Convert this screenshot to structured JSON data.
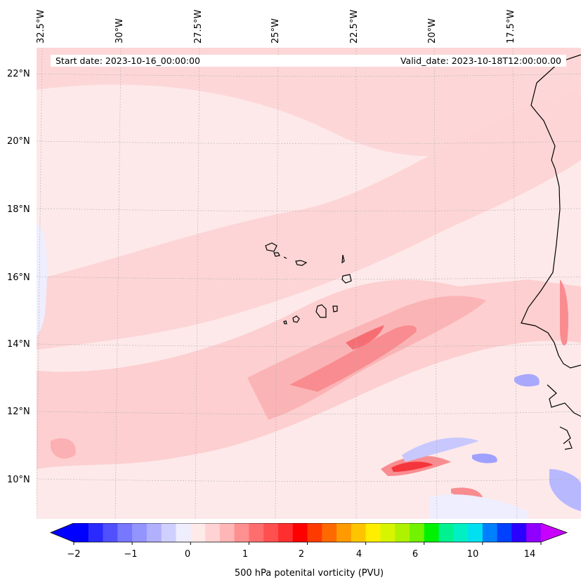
{
  "map": {
    "start_date": "Start date: 2023-10-16_00:00:00",
    "valid_date": "Valid_date: 2023-10-18T12:00:00.00",
    "lon_labels": [
      "32.5°W",
      "30°W",
      "27.5°W",
      "25°W",
      "22.5°W",
      "20°W",
      "17.5°W"
    ],
    "lat_labels": [
      "22°N",
      "20°N",
      "18°N",
      "16°N",
      "14°N",
      "12°N",
      "10°N"
    ],
    "coastline_color": "#000000",
    "gridline_color": "#b0b0b0"
  },
  "colorbar": {
    "title": "500 hPa potenital vorticity (PVU)",
    "tick_labels": [
      "−2",
      "−1",
      "0",
      "1",
      "2",
      "4",
      "6",
      "10",
      "14"
    ],
    "colors": [
      "#0000ff",
      "#2a2aff",
      "#5050ff",
      "#7777ff",
      "#9494ff",
      "#b0b0ff",
      "#d0d0ff",
      "#eeeeff",
      "#ffeaea",
      "#ffd3d3",
      "#ffb6b6",
      "#ff9090",
      "#ff6e6e",
      "#ff5050",
      "#ff2f2f",
      "#ff0000",
      "#ff3a00",
      "#ff6a00",
      "#ff9a00",
      "#ffc400",
      "#ffee00",
      "#d8f500",
      "#aef200",
      "#70f200",
      "#00f200",
      "#00f290",
      "#00f0c4",
      "#00e0f0",
      "#0080ff",
      "#0040ff",
      "#2a00ff",
      "#9000ff"
    ],
    "under_color": "#0000ff",
    "over_color": "#c800ff"
  }
}
